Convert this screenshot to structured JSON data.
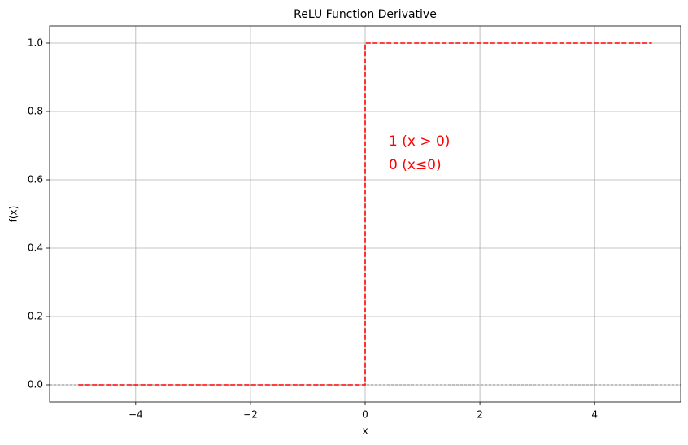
{
  "chart_data": {
    "type": "line",
    "title": "ReLU Function Derivative",
    "x_label": "x",
    "y_label": "f(x)",
    "x": [
      -5,
      0,
      0,
      5
    ],
    "values": [
      0,
      0,
      1,
      1
    ],
    "color": "#ff0000",
    "line_style": "dashed",
    "xlim": [
      -5.5,
      5.5
    ],
    "ylim": [
      -0.05,
      1.05
    ],
    "xticks": [
      {
        "value": -4,
        "label": "−4"
      },
      {
        "value": -2,
        "label": "−2"
      },
      0,
      2,
      4
    ],
    "yticks": [
      {
        "value": 0,
        "label": "0.0"
      },
      0.2,
      0.4,
      0.6,
      0.8,
      {
        "value": 1,
        "label": "1.0"
      }
    ],
    "grid": true,
    "reference_lines": [
      {
        "y": 0,
        "color": "#808080"
      }
    ],
    "annotations": [
      "1 (x > 0)",
      "0 (x≤0)"
    ],
    "annotation_color": "#ff0000"
  }
}
